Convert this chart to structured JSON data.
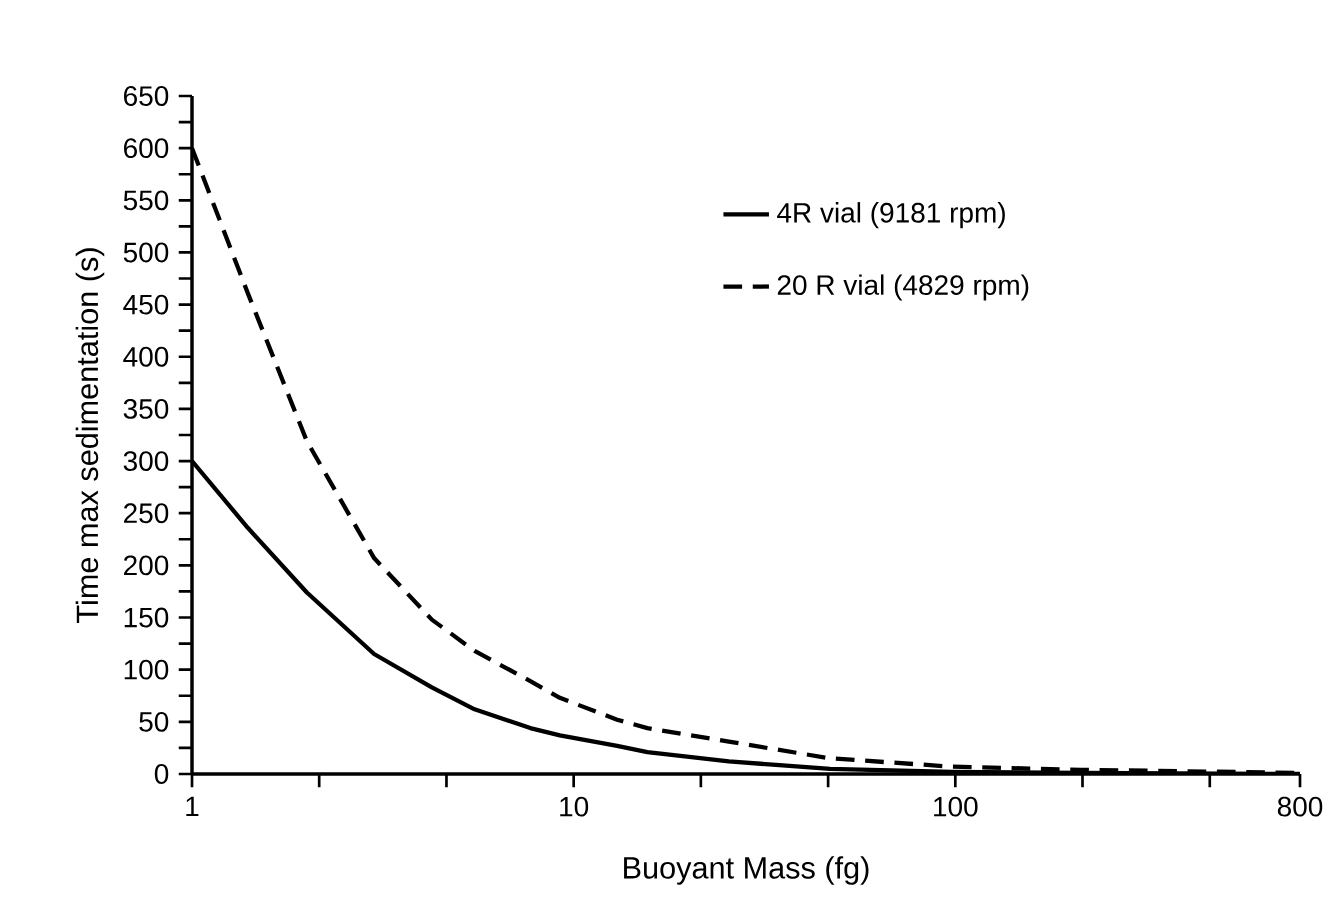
{
  "chart_data": {
    "type": "line",
    "xlabel": "Buoyant Mass (fg)",
    "ylabel": "Time max sedimentation (s)",
    "log": "x",
    "x": [
      1,
      1.4,
      2,
      3,
      4.25,
      5.5,
      7.7,
      9.2,
      13,
      15.6,
      25.5,
      47,
      98,
      214,
      800
    ],
    "series": [
      {
        "name": "4R vial (9181 rpm)",
        "color": "#000000",
        "line_style": "solid",
        "values": [
          300,
          236,
          174,
          115,
          83,
          62,
          44,
          37,
          27,
          21,
          12,
          5,
          2,
          1,
          0
        ]
      },
      {
        "name": "20 R vial (4829 rpm)",
        "color": "#000000",
        "line_style": "dashed",
        "values": [
          600,
          461,
          319,
          207,
          148,
          118,
          89,
          73,
          52,
          44,
          31,
          15,
          7,
          4,
          1
        ]
      }
    ],
    "xlim": [
      1,
      800
    ],
    "ylim": [
      0,
      650
    ],
    "xticks": [
      1,
      {
        "value": 2.154,
        "label": null
      },
      {
        "value": 4.642,
        "label": null
      },
      10,
      {
        "value": 21.54,
        "label": null
      },
      {
        "value": 46.42,
        "label": null
      },
      100,
      {
        "value": 215.4,
        "label": null
      },
      {
        "value": 464.2,
        "label": null
      },
      800
    ],
    "yticks": [
      0,
      {
        "value": 25,
        "label": null
      },
      50,
      {
        "value": 75,
        "label": null
      },
      100,
      {
        "value": 125,
        "label": null
      },
      150,
      {
        "value": 175,
        "label": null
      },
      200,
      {
        "value": 225,
        "label": null
      },
      250,
      {
        "value": 275,
        "label": null
      },
      300,
      {
        "value": 325,
        "label": null
      },
      350,
      {
        "value": 375,
        "label": null
      },
      400,
      {
        "value": 425,
        "label": null
      },
      450,
      {
        "value": 475,
        "label": null
      },
      500,
      {
        "value": 525,
        "label": null
      },
      550,
      {
        "value": 575,
        "label": null
      },
      600,
      {
        "value": 625,
        "label": null
      },
      650
    ],
    "grid": false,
    "legend": "top right",
    "marker": "none"
  }
}
